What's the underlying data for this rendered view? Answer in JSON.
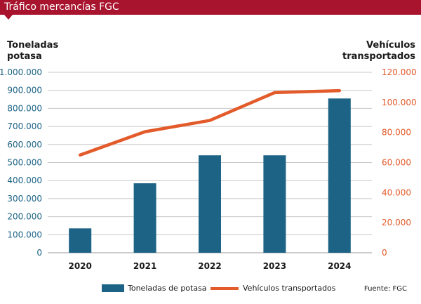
{
  "header": {
    "title": "Tráfico mercancías FGC"
  },
  "axis_titles": {
    "left": [
      "Toneladas",
      "potasa"
    ],
    "right": [
      "Vehículos",
      "transportados"
    ]
  },
  "colors": {
    "brand": "#a8132d",
    "bars": "#1c6385",
    "line": "#e35b2a",
    "left_ticks": "#1c6385",
    "right_ticks": "#e35b2a",
    "grid": "#c8c8c8"
  },
  "chart_data": {
    "type": "bar",
    "categories": [
      "2020",
      "2021",
      "2022",
      "2023",
      "2024"
    ],
    "series": [
      {
        "name": "Toneladas de potasa",
        "type": "bar",
        "axis": "left",
        "values": [
          135000,
          385000,
          540000,
          540000,
          855000
        ]
      },
      {
        "name": "Vehículos transportados",
        "type": "line",
        "axis": "right",
        "values": [
          65000,
          80500,
          88000,
          106500,
          107800
        ]
      }
    ],
    "y_left": {
      "range": [
        0,
        1000000
      ],
      "ticks": [
        "0",
        "100.000",
        "200.000",
        "300.000",
        "400.000",
        "500.000",
        "600.000",
        "700.000",
        "800.000",
        "900.000",
        "1.000.000"
      ]
    },
    "y_right": {
      "range": [
        0,
        120000
      ],
      "ticks": [
        "0",
        "20.000",
        "40.000",
        "60.000",
        "80.000",
        "100.000",
        "120.000"
      ]
    },
    "grid": true,
    "legend": "bottom"
  },
  "footer": {
    "source": "Fuente: FGC"
  }
}
